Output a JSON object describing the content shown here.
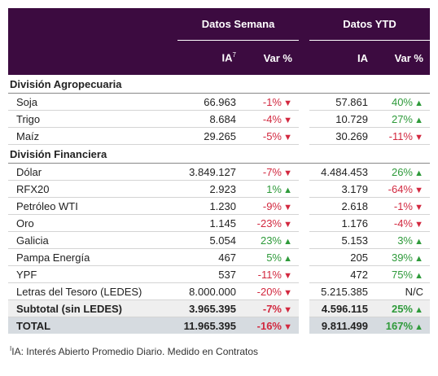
{
  "table": {
    "header": {
      "groups": [
        "Datos Semana",
        "Datos YTD"
      ],
      "columns": [
        "IA",
        "Var %",
        "IA",
        "Var %"
      ],
      "ia_mark": "7"
    },
    "sections": [
      {
        "title": "División Agropecuaria",
        "rows": [
          [
            "Soja",
            "66.963",
            "-1%",
            "57.861",
            "40%"
          ],
          [
            "Trigo",
            "8.684",
            "-4%",
            "10.729",
            "27%"
          ],
          [
            "Maíz",
            "29.265",
            "-5%",
            "30.269",
            "-11%"
          ]
        ]
      },
      {
        "title": "División Financiera",
        "rows": [
          [
            "Dólar",
            "3.849.127",
            "-7%",
            "4.484.453",
            "26%"
          ],
          [
            "RFX20",
            "2.923",
            "1%",
            "3.179",
            "-64%"
          ],
          [
            "Petróleo WTI",
            "1.230",
            "-9%",
            "2.618",
            "-1%"
          ],
          [
            "Oro",
            "1.145",
            "-23%",
            "1.176",
            "-4%"
          ],
          [
            "Galicia",
            "5.054",
            "23%",
            "5.153",
            "3%"
          ],
          [
            "Pampa Energía",
            "467",
            "5%",
            "205",
            "39%"
          ],
          [
            "YPF",
            "537",
            "-11%",
            "472",
            "75%"
          ],
          [
            "Letras del Tesoro (LEDES)",
            "8.000.000",
            "-20%",
            "5.215.385",
            "N/C"
          ]
        ]
      }
    ],
    "subtotal": [
      "Subtotal (sin LEDES)",
      "3.965.395",
      "-7%",
      "4.596.115",
      "25%"
    ],
    "total": [
      "TOTAL",
      "11.965.395",
      "-16%",
      "9.811.499",
      "167%"
    ],
    "footnote": {
      "mark": "I",
      "text": "IA: Interés Abierto Promedio Diario. Medido en Contratos"
    }
  }
}
